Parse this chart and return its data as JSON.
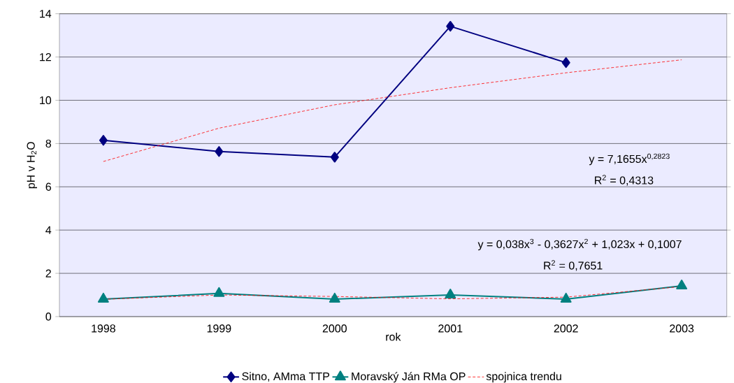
{
  "chart_data": {
    "type": "line",
    "xlabel": "rok",
    "ylabel": "pH v H$_{2}$O",
    "categories": [
      "1998",
      "1999",
      "2000",
      "2001",
      "2002",
      "2003"
    ],
    "series": [
      {
        "name": "Sitno, AMma TTP",
        "color": "#000080",
        "marker": "diamond",
        "line_style": "solid",
        "values": [
          8.15,
          7.63,
          7.37,
          13.42,
          11.74,
          null
        ]
      },
      {
        "name": "Moravský Ján RMa OP",
        "color": "#008080",
        "marker": "triangle",
        "line_style": "solid",
        "values": [
          0.81,
          1.07,
          0.81,
          1.0,
          0.81,
          1.42
        ]
      },
      {
        "name": "spojnica trendu",
        "color": "#ff0000",
        "marker": "none",
        "line_style": "dashed",
        "values": [
          7.17,
          8.71,
          9.79,
          10.58,
          11.27,
          11.87
        ]
      },
      {
        "color": "#ff0000",
        "marker": "none",
        "line_style": "dashed",
        "values": [
          0.8,
          1.0,
          0.93,
          0.82,
          0.9,
          1.39
        ]
      }
    ],
    "ylim": [
      0,
      14
    ],
    "yticks": [
      0,
      2,
      4,
      6,
      8,
      10,
      12,
      14
    ],
    "grid": "y",
    "legend": "bottom",
    "annotations": [
      "y = 7,1655x$^{0,2823}$",
      "R$^{2}$ = 0,4313",
      "y = 0,038x$^{3}$ - 0,3627x$^{2}$ + 1,023x + 0,1007",
      "R$^{2}$ = 0,7651"
    ]
  }
}
